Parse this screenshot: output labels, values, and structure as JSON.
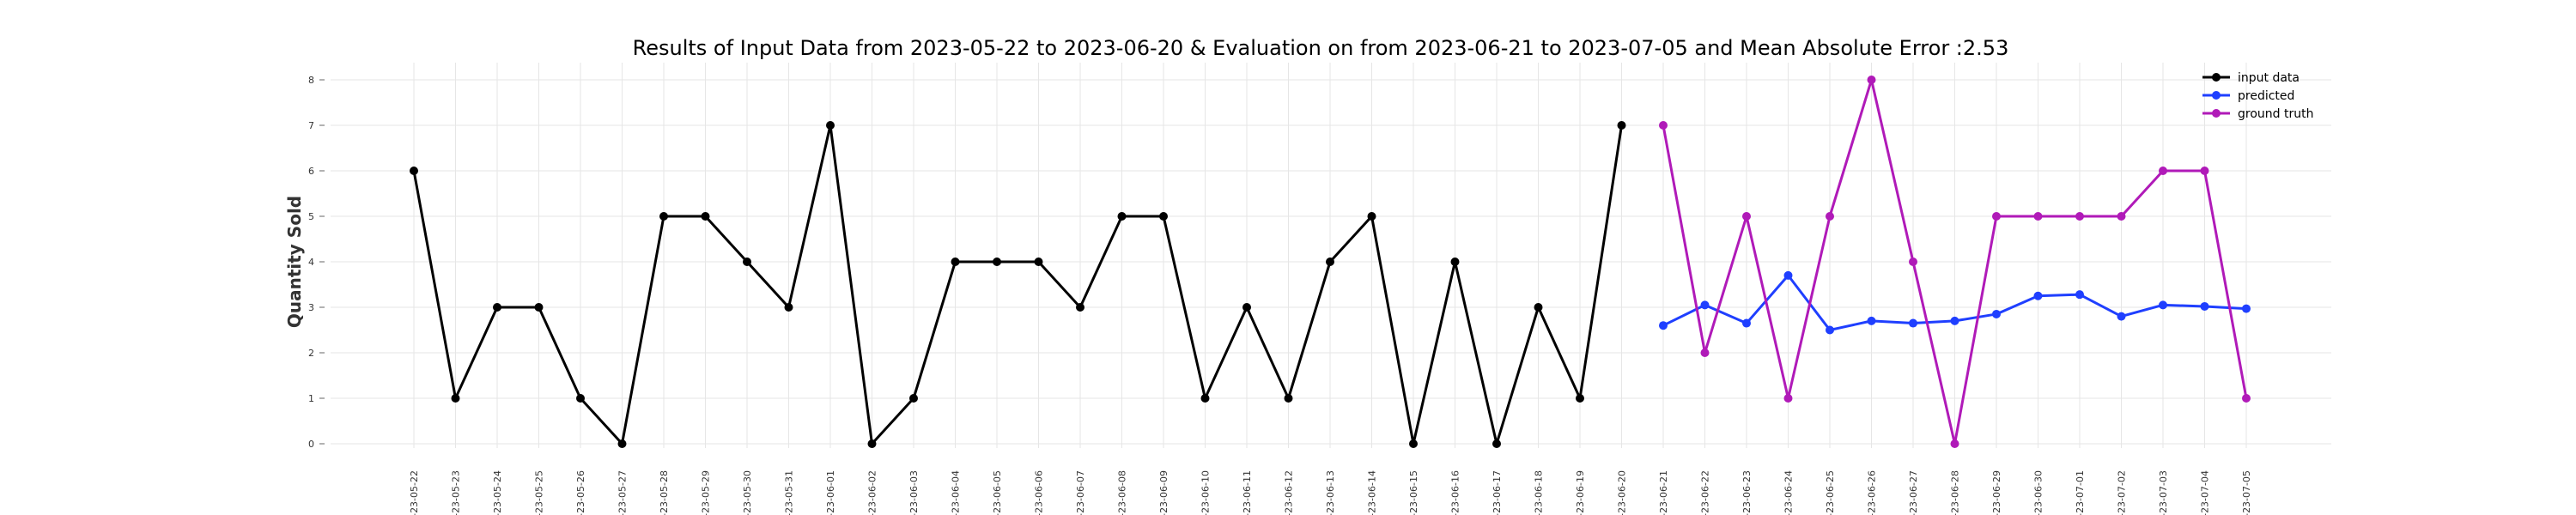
{
  "chart_data": {
    "type": "line",
    "title": "Results of Input Data from 2023-05-22 to 2023-06-20 & Evaluation on from 2023-06-21 to 2023-07-05 and Mean Absolute Error  :2.53",
    "xlabel": "",
    "ylabel": "Quantity Sold",
    "ylim": [
      0,
      8
    ],
    "yticks": [
      0,
      1,
      2,
      3,
      4,
      5,
      6,
      7,
      8
    ],
    "grid": true,
    "legend_position": "top-right",
    "x": [
      "2023-05-22",
      "2023-05-23",
      "2023-05-24",
      "2023-05-25",
      "2023-05-26",
      "2023-05-27",
      "2023-05-28",
      "2023-05-29",
      "2023-05-30",
      "2023-05-31",
      "2023-06-01",
      "2023-06-02",
      "2023-06-03",
      "2023-06-04",
      "2023-06-05",
      "2023-06-06",
      "2023-06-07",
      "2023-06-08",
      "2023-06-09",
      "2023-06-10",
      "2023-06-11",
      "2023-06-12",
      "2023-06-13",
      "2023-06-14",
      "2023-06-15",
      "2023-06-16",
      "2023-06-17",
      "2023-06-18",
      "2023-06-19",
      "2023-06-20",
      "2023-06-21",
      "2023-06-22",
      "2023-06-23",
      "2023-06-24",
      "2023-06-25",
      "2023-06-26",
      "2023-06-27",
      "2023-06-28",
      "2023-06-29",
      "2023-06-30",
      "2023-07-01",
      "2023-07-02",
      "2023-07-03",
      "2023-07-04",
      "2023-07-05"
    ],
    "tick_labels": [
      "-23-05-22",
      "-23-05-23",
      "-23-05-24",
      "-23-05-25",
      "-23-05-26",
      "-23-05-27",
      "-23-05-28",
      "-23-05-29",
      "-23-05-30",
      "-23-05-31",
      "-23-06-01",
      "-23-06-02",
      "-23-06-03",
      "-23-06-04",
      "-23-06-05",
      "-23-06-06",
      "-23-06-07",
      "-23-06-08",
      "-23-06-09",
      "-23-06-10",
      "-23-06-11",
      "-23-06-12",
      "-23-06-13",
      "-23-06-14",
      "-23-06-15",
      "-23-06-16",
      "-23-06-17",
      "-23-06-18",
      "-23-06-19",
      "-23-06-20",
      "-23-06-21",
      "-23-06-22",
      "-23-06-23",
      "-23-06-24",
      "-23-06-25",
      "-23-06-26",
      "-23-06-27",
      "-23-06-28",
      "-23-06-29",
      "-23-06-30",
      "-23-07-01",
      "-23-07-02",
      "-23-07-03",
      "-23-07-04",
      "-23-07-05"
    ],
    "series": [
      {
        "name": "input data",
        "color": "#000000",
        "x": [
          "2023-05-22",
          "2023-05-23",
          "2023-05-24",
          "2023-05-25",
          "2023-05-26",
          "2023-05-27",
          "2023-05-28",
          "2023-05-29",
          "2023-05-30",
          "2023-05-31",
          "2023-06-01",
          "2023-06-02",
          "2023-06-03",
          "2023-06-04",
          "2023-06-05",
          "2023-06-06",
          "2023-06-07",
          "2023-06-08",
          "2023-06-09",
          "2023-06-10",
          "2023-06-11",
          "2023-06-12",
          "2023-06-13",
          "2023-06-14",
          "2023-06-15",
          "2023-06-16",
          "2023-06-17",
          "2023-06-18",
          "2023-06-19",
          "2023-06-20"
        ],
        "values": [
          6,
          1,
          3,
          3,
          1,
          0,
          5,
          5,
          4,
          3,
          7,
          0,
          1,
          4,
          4,
          4,
          3,
          5,
          5,
          1,
          3,
          1,
          4,
          5,
          0,
          4,
          0,
          3,
          1,
          7
        ]
      },
      {
        "name": "predicted",
        "color": "#1f3fff",
        "x": [
          "2023-06-21",
          "2023-06-22",
          "2023-06-23",
          "2023-06-24",
          "2023-06-25",
          "2023-06-26",
          "2023-06-27",
          "2023-06-28",
          "2023-06-29",
          "2023-06-30",
          "2023-07-01",
          "2023-07-02",
          "2023-07-03",
          "2023-07-04",
          "2023-07-05"
        ],
        "values": [
          2.6,
          3.05,
          2.65,
          3.7,
          2.5,
          2.7,
          2.65,
          2.7,
          2.85,
          3.25,
          3.28,
          2.8,
          3.05,
          3.02,
          2.97
        ]
      },
      {
        "name": "ground truth",
        "color": "#b01ab8",
        "x": [
          "2023-06-21",
          "2023-06-22",
          "2023-06-23",
          "2023-06-24",
          "2023-06-25",
          "2023-06-26",
          "2023-06-27",
          "2023-06-28",
          "2023-06-29",
          "2023-06-30",
          "2023-07-01",
          "2023-07-02",
          "2023-07-03",
          "2023-07-04",
          "2023-07-05"
        ],
        "values": [
          7,
          2,
          5,
          1,
          5,
          8,
          4,
          0,
          5,
          5,
          5,
          5,
          6,
          6,
          1
        ]
      }
    ]
  }
}
